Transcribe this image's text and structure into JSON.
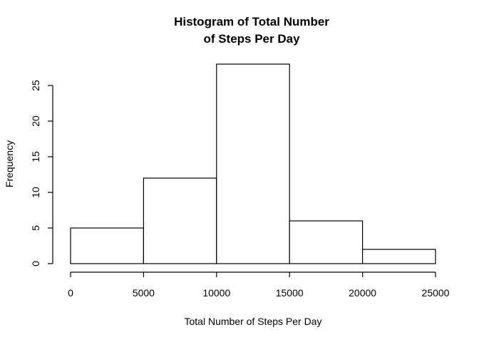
{
  "chart_data": {
    "type": "bar",
    "title_lines": [
      "Histogram of Total Number",
      "of Steps Per Day"
    ],
    "xlabel": "Total Number of Steps Per Day",
    "ylabel": "Frequency",
    "bins": [
      {
        "start": 0,
        "end": 5000,
        "count": 5
      },
      {
        "start": 5000,
        "end": 10000,
        "count": 12
      },
      {
        "start": 10000,
        "end": 15000,
        "count": 28
      },
      {
        "start": 15000,
        "end": 20000,
        "count": 6
      },
      {
        "start": 20000,
        "end": 25000,
        "count": 2
      }
    ],
    "xlim": [
      0,
      25000
    ],
    "ylim": [
      0,
      28
    ],
    "x_ticks": [
      0,
      5000,
      10000,
      15000,
      20000,
      25000
    ],
    "y_ticks": [
      0,
      5,
      10,
      15,
      20,
      25
    ],
    "grid": false,
    "legend": "none",
    "bar_fill": "#ffffff",
    "bar_stroke": "#000000"
  }
}
